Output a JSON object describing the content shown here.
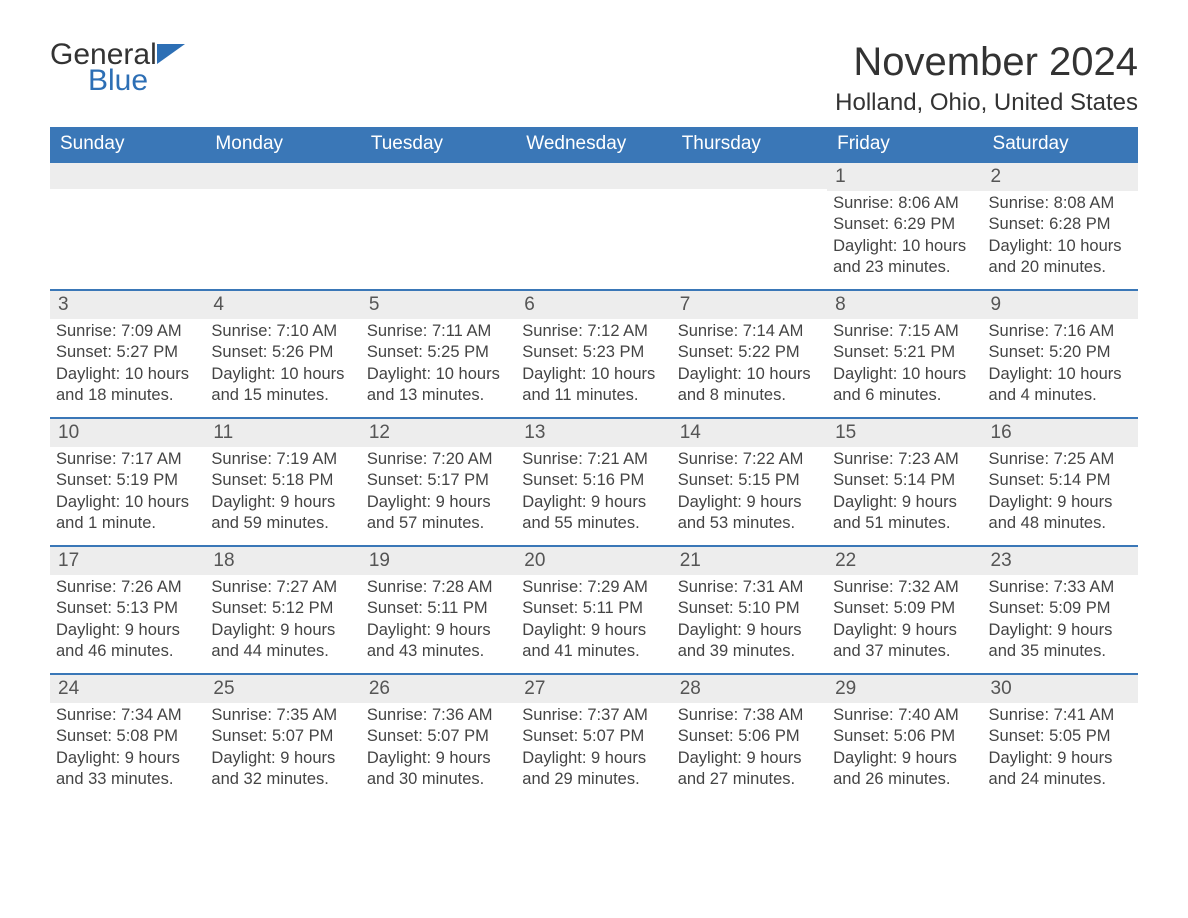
{
  "brand": {
    "part1": "General",
    "part2": "Blue"
  },
  "title": "November 2024",
  "location": "Holland, Ohio, United States",
  "colors": {
    "header_bg": "#3a77b7",
    "header_text": "#ffffff",
    "row_border": "#3a77b7",
    "daynum_bg": "#ededed",
    "text": "#333333",
    "brand_blue": "#2d6fb5",
    "page_bg": "#ffffff"
  },
  "layout": {
    "type": "calendar-table",
    "columns": 7,
    "rows": 5,
    "title_fontsize": 40,
    "location_fontsize": 24,
    "weekday_fontsize": 19,
    "daynum_fontsize": 19,
    "body_fontsize": 16.5
  },
  "weekdays": [
    "Sunday",
    "Monday",
    "Tuesday",
    "Wednesday",
    "Thursday",
    "Friday",
    "Saturday"
  ],
  "weeks": [
    [
      null,
      null,
      null,
      null,
      null,
      {
        "n": "1",
        "sunrise": "Sunrise: 8:06 AM",
        "sunset": "Sunset: 6:29 PM",
        "daylight": "Daylight: 10 hours and 23 minutes."
      },
      {
        "n": "2",
        "sunrise": "Sunrise: 8:08 AM",
        "sunset": "Sunset: 6:28 PM",
        "daylight": "Daylight: 10 hours and 20 minutes."
      }
    ],
    [
      {
        "n": "3",
        "sunrise": "Sunrise: 7:09 AM",
        "sunset": "Sunset: 5:27 PM",
        "daylight": "Daylight: 10 hours and 18 minutes."
      },
      {
        "n": "4",
        "sunrise": "Sunrise: 7:10 AM",
        "sunset": "Sunset: 5:26 PM",
        "daylight": "Daylight: 10 hours and 15 minutes."
      },
      {
        "n": "5",
        "sunrise": "Sunrise: 7:11 AM",
        "sunset": "Sunset: 5:25 PM",
        "daylight": "Daylight: 10 hours and 13 minutes."
      },
      {
        "n": "6",
        "sunrise": "Sunrise: 7:12 AM",
        "sunset": "Sunset: 5:23 PM",
        "daylight": "Daylight: 10 hours and 11 minutes."
      },
      {
        "n": "7",
        "sunrise": "Sunrise: 7:14 AM",
        "sunset": "Sunset: 5:22 PM",
        "daylight": "Daylight: 10 hours and 8 minutes."
      },
      {
        "n": "8",
        "sunrise": "Sunrise: 7:15 AM",
        "sunset": "Sunset: 5:21 PM",
        "daylight": "Daylight: 10 hours and 6 minutes."
      },
      {
        "n": "9",
        "sunrise": "Sunrise: 7:16 AM",
        "sunset": "Sunset: 5:20 PM",
        "daylight": "Daylight: 10 hours and 4 minutes."
      }
    ],
    [
      {
        "n": "10",
        "sunrise": "Sunrise: 7:17 AM",
        "sunset": "Sunset: 5:19 PM",
        "daylight": "Daylight: 10 hours and 1 minute."
      },
      {
        "n": "11",
        "sunrise": "Sunrise: 7:19 AM",
        "sunset": "Sunset: 5:18 PM",
        "daylight": "Daylight: 9 hours and 59 minutes."
      },
      {
        "n": "12",
        "sunrise": "Sunrise: 7:20 AM",
        "sunset": "Sunset: 5:17 PM",
        "daylight": "Daylight: 9 hours and 57 minutes."
      },
      {
        "n": "13",
        "sunrise": "Sunrise: 7:21 AM",
        "sunset": "Sunset: 5:16 PM",
        "daylight": "Daylight: 9 hours and 55 minutes."
      },
      {
        "n": "14",
        "sunrise": "Sunrise: 7:22 AM",
        "sunset": "Sunset: 5:15 PM",
        "daylight": "Daylight: 9 hours and 53 minutes."
      },
      {
        "n": "15",
        "sunrise": "Sunrise: 7:23 AM",
        "sunset": "Sunset: 5:14 PM",
        "daylight": "Daylight: 9 hours and 51 minutes."
      },
      {
        "n": "16",
        "sunrise": "Sunrise: 7:25 AM",
        "sunset": "Sunset: 5:14 PM",
        "daylight": "Daylight: 9 hours and 48 minutes."
      }
    ],
    [
      {
        "n": "17",
        "sunrise": "Sunrise: 7:26 AM",
        "sunset": "Sunset: 5:13 PM",
        "daylight": "Daylight: 9 hours and 46 minutes."
      },
      {
        "n": "18",
        "sunrise": "Sunrise: 7:27 AM",
        "sunset": "Sunset: 5:12 PM",
        "daylight": "Daylight: 9 hours and 44 minutes."
      },
      {
        "n": "19",
        "sunrise": "Sunrise: 7:28 AM",
        "sunset": "Sunset: 5:11 PM",
        "daylight": "Daylight: 9 hours and 43 minutes."
      },
      {
        "n": "20",
        "sunrise": "Sunrise: 7:29 AM",
        "sunset": "Sunset: 5:11 PM",
        "daylight": "Daylight: 9 hours and 41 minutes."
      },
      {
        "n": "21",
        "sunrise": "Sunrise: 7:31 AM",
        "sunset": "Sunset: 5:10 PM",
        "daylight": "Daylight: 9 hours and 39 minutes."
      },
      {
        "n": "22",
        "sunrise": "Sunrise: 7:32 AM",
        "sunset": "Sunset: 5:09 PM",
        "daylight": "Daylight: 9 hours and 37 minutes."
      },
      {
        "n": "23",
        "sunrise": "Sunrise: 7:33 AM",
        "sunset": "Sunset: 5:09 PM",
        "daylight": "Daylight: 9 hours and 35 minutes."
      }
    ],
    [
      {
        "n": "24",
        "sunrise": "Sunrise: 7:34 AM",
        "sunset": "Sunset: 5:08 PM",
        "daylight": "Daylight: 9 hours and 33 minutes."
      },
      {
        "n": "25",
        "sunrise": "Sunrise: 7:35 AM",
        "sunset": "Sunset: 5:07 PM",
        "daylight": "Daylight: 9 hours and 32 minutes."
      },
      {
        "n": "26",
        "sunrise": "Sunrise: 7:36 AM",
        "sunset": "Sunset: 5:07 PM",
        "daylight": "Daylight: 9 hours and 30 minutes."
      },
      {
        "n": "27",
        "sunrise": "Sunrise: 7:37 AM",
        "sunset": "Sunset: 5:07 PM",
        "daylight": "Daylight: 9 hours and 29 minutes."
      },
      {
        "n": "28",
        "sunrise": "Sunrise: 7:38 AM",
        "sunset": "Sunset: 5:06 PM",
        "daylight": "Daylight: 9 hours and 27 minutes."
      },
      {
        "n": "29",
        "sunrise": "Sunrise: 7:40 AM",
        "sunset": "Sunset: 5:06 PM",
        "daylight": "Daylight: 9 hours and 26 minutes."
      },
      {
        "n": "30",
        "sunrise": "Sunrise: 7:41 AM",
        "sunset": "Sunset: 5:05 PM",
        "daylight": "Daylight: 9 hours and 24 minutes."
      }
    ]
  ]
}
